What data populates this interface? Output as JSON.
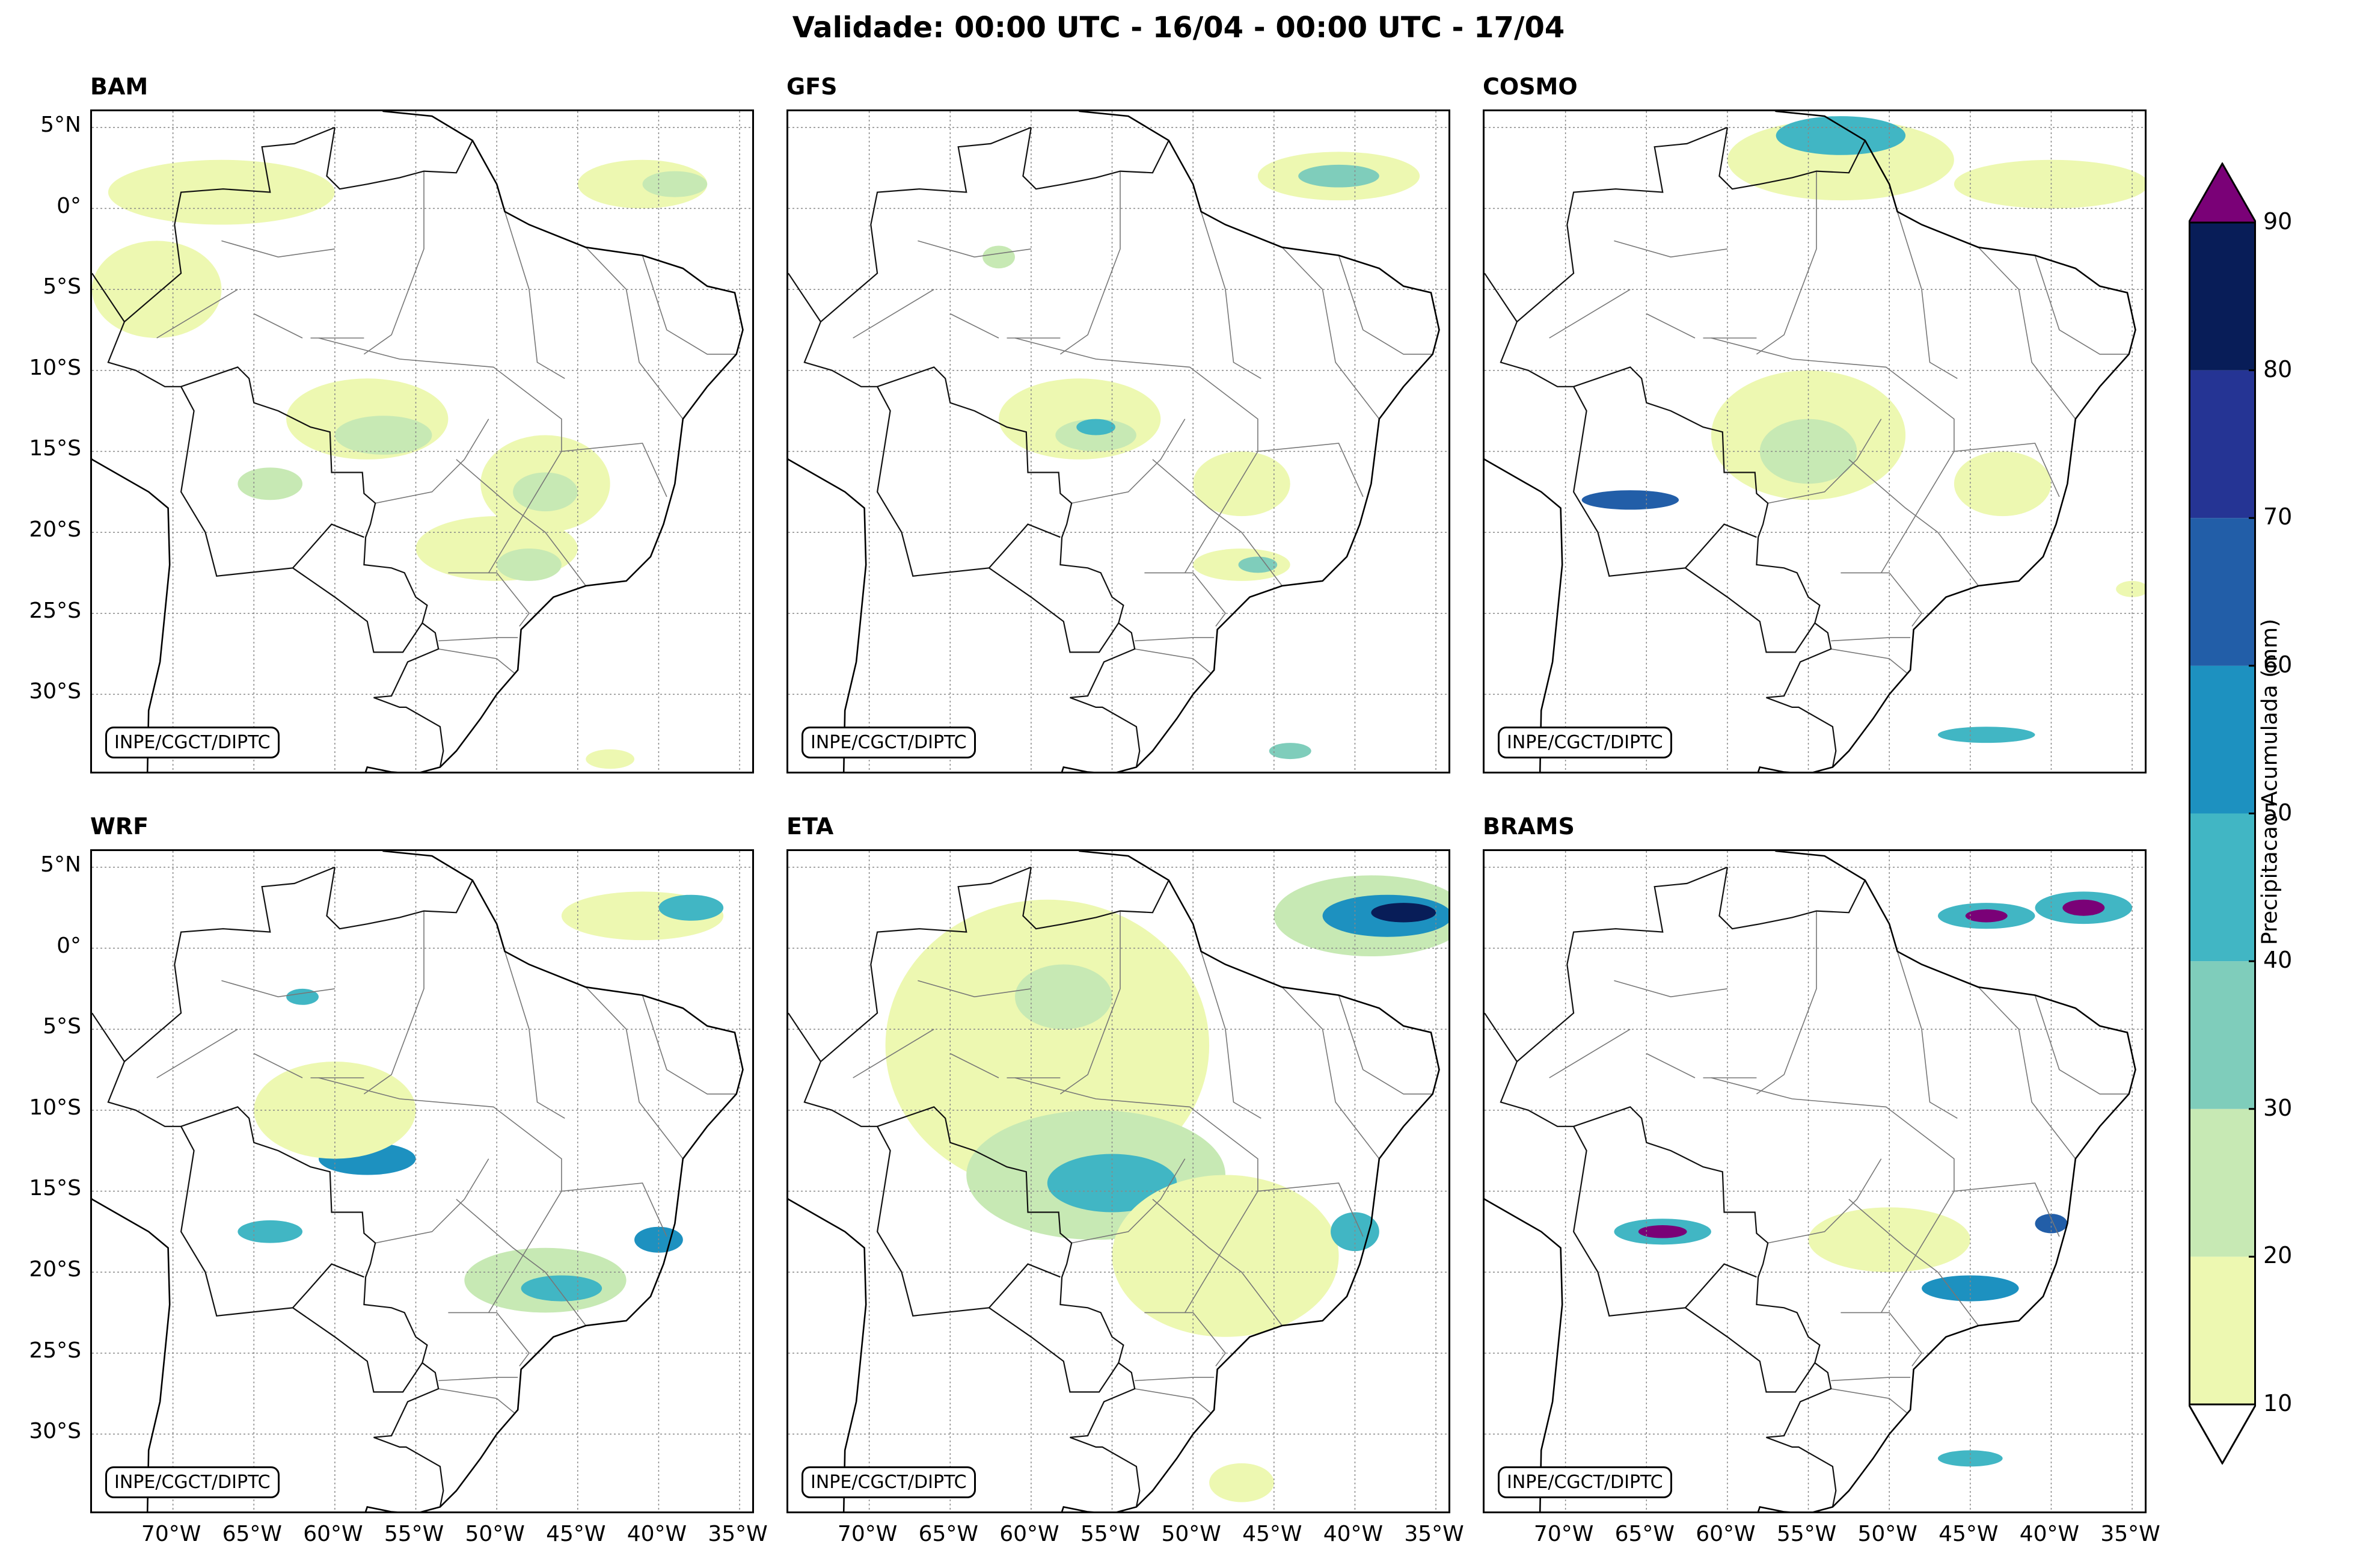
{
  "title": "Validade: 00:00 UTC - 16/04 - 00:00 UTC - 17/04",
  "credit": "INPE/CGCT/DIPTC",
  "latitude_labels": [
    "5°N",
    "0°",
    "5°S",
    "10°S",
    "15°S",
    "20°S",
    "25°S",
    "30°S"
  ],
  "latitude_values": [
    5,
    0,
    -5,
    -10,
    -15,
    -20,
    -25,
    -30
  ],
  "longitude_labels": [
    "70°W",
    "65°W",
    "60°W",
    "55°W",
    "50°W",
    "45°W",
    "40°W",
    "35°W"
  ],
  "longitude_values": [
    -70,
    -65,
    -60,
    -55,
    -50,
    -45,
    -40,
    -35
  ],
  "map_extent": {
    "lon_min": -75,
    "lon_max": -34,
    "lat_min": -35,
    "lat_max": 6
  },
  "panels": [
    {
      "id": "bam",
      "title": "BAM",
      "show_lat": true,
      "show_lon": false
    },
    {
      "id": "gfs",
      "title": "GFS",
      "show_lat": false,
      "show_lon": false
    },
    {
      "id": "cosmo",
      "title": "COSMO",
      "show_lat": false,
      "show_lon": false
    },
    {
      "id": "wrf",
      "title": "WRF",
      "show_lat": true,
      "show_lon": true
    },
    {
      "id": "eta",
      "title": "ETA",
      "show_lat": false,
      "show_lon": true
    },
    {
      "id": "brams",
      "title": "BRAMS",
      "show_lat": false,
      "show_lon": true
    }
  ],
  "colorbar": {
    "label": "Precipitacao Acumulada (mm)",
    "ticks": [
      10,
      20,
      30,
      40,
      50,
      60,
      70,
      80,
      90
    ],
    "bins": [
      {
        "from": 10,
        "to": 20,
        "color": "#edf8b1"
      },
      {
        "from": 20,
        "to": 30,
        "color": "#c7e9b4"
      },
      {
        "from": 30,
        "to": 40,
        "color": "#7fcdbb"
      },
      {
        "from": 40,
        "to": 50,
        "color": "#41b6c4"
      },
      {
        "from": 50,
        "to": 60,
        "color": "#1d91c0"
      },
      {
        "from": 60,
        "to": 70,
        "color": "#225ea8"
      },
      {
        "from": 70,
        "to": 80,
        "color": "#253494"
      },
      {
        "from": 80,
        "to": 90,
        "color": "#081d58"
      }
    ],
    "over_color": "#7a0177",
    "under_color": "#ffffff"
  },
  "precip_patches": {
    "bam": [
      {
        "lon": -41,
        "lat": 1.5,
        "rx": 4,
        "ry": 1.5,
        "mm": 15
      },
      {
        "lon": -39,
        "lat": 1.5,
        "rx": 2,
        "ry": 0.8,
        "mm": 25
      },
      {
        "lon": -67,
        "lat": 1,
        "rx": 7,
        "ry": 2,
        "mm": 12
      },
      {
        "lon": -71,
        "lat": -5,
        "rx": 4,
        "ry": 3,
        "mm": 12
      },
      {
        "lon": -58,
        "lat": -13,
        "rx": 5,
        "ry": 2.5,
        "mm": 15
      },
      {
        "lon": -57,
        "lat": -14,
        "rx": 3,
        "ry": 1.2,
        "mm": 25
      },
      {
        "lon": -64,
        "lat": -17,
        "rx": 2,
        "ry": 1,
        "mm": 25
      },
      {
        "lon": -47,
        "lat": -17,
        "rx": 4,
        "ry": 3,
        "mm": 15
      },
      {
        "lon": -47,
        "lat": -17.5,
        "rx": 2,
        "ry": 1.2,
        "mm": 25
      },
      {
        "lon": -50,
        "lat": -21,
        "rx": 5,
        "ry": 2,
        "mm": 12
      },
      {
        "lon": -48,
        "lat": -22,
        "rx": 2,
        "ry": 1,
        "mm": 25
      },
      {
        "lon": -43,
        "lat": -34,
        "rx": 1.5,
        "ry": 0.6,
        "mm": 12
      }
    ],
    "gfs": [
      {
        "lon": -41,
        "lat": 2,
        "rx": 5,
        "ry": 1.5,
        "mm": 15
      },
      {
        "lon": -41,
        "lat": 2,
        "rx": 2.5,
        "ry": 0.7,
        "mm": 32
      },
      {
        "lon": -57,
        "lat": -13,
        "rx": 5,
        "ry": 2.5,
        "mm": 12
      },
      {
        "lon": -56,
        "lat": -14,
        "rx": 2.5,
        "ry": 1,
        "mm": 25
      },
      {
        "lon": -56,
        "lat": -13.5,
        "rx": 1.2,
        "ry": 0.5,
        "mm": 45
      },
      {
        "lon": -47,
        "lat": -17,
        "rx": 3,
        "ry": 2,
        "mm": 12
      },
      {
        "lon": -47,
        "lat": -22,
        "rx": 3,
        "ry": 1,
        "mm": 15
      },
      {
        "lon": -46,
        "lat": -22,
        "rx": 1.2,
        "ry": 0.5,
        "mm": 30
      },
      {
        "lon": -62,
        "lat": -3,
        "rx": 1,
        "ry": 0.7,
        "mm": 25
      },
      {
        "lon": -44,
        "lat": -33.5,
        "rx": 1.3,
        "ry": 0.5,
        "mm": 30
      }
    ],
    "cosmo": [
      {
        "lon": -53,
        "lat": 3,
        "rx": 7,
        "ry": 2.5,
        "mm": 12
      },
      {
        "lon": -53,
        "lat": 4.5,
        "rx": 4,
        "ry": 1.2,
        "mm": 45
      },
      {
        "lon": -40,
        "lat": 1.5,
        "rx": 6,
        "ry": 1.5,
        "mm": 12
      },
      {
        "lon": -55,
        "lat": -14,
        "rx": 6,
        "ry": 4,
        "mm": 12
      },
      {
        "lon": -55,
        "lat": -15,
        "rx": 3,
        "ry": 2,
        "mm": 25
      },
      {
        "lon": -66,
        "lat": -18,
        "rx": 3,
        "ry": 0.6,
        "mm": 65
      },
      {
        "lon": -43,
        "lat": -17,
        "rx": 3,
        "ry": 2,
        "mm": 15
      },
      {
        "lon": -44,
        "lat": -32.5,
        "rx": 3,
        "ry": 0.5,
        "mm": 40
      },
      {
        "lon": -35,
        "lat": -23.5,
        "rx": 1,
        "ry": 0.5,
        "mm": 15
      }
    ],
    "wrf": [
      {
        "lon": -41,
        "lat": 2,
        "rx": 5,
        "ry": 1.5,
        "mm": 15
      },
      {
        "lon": -38,
        "lat": 2.5,
        "rx": 2,
        "ry": 0.8,
        "mm": 40
      },
      {
        "lon": -58,
        "lat": -13,
        "rx": 3,
        "ry": 1,
        "mm": 55
      },
      {
        "lon": -64,
        "lat": -17.5,
        "rx": 2,
        "ry": 0.7,
        "mm": 45
      },
      {
        "lon": -47,
        "lat": -20.5,
        "rx": 5,
        "ry": 2,
        "mm": 25
      },
      {
        "lon": -46,
        "lat": -21,
        "rx": 2.5,
        "ry": 0.8,
        "mm": 45
      },
      {
        "lon": -40,
        "lat": -18,
        "rx": 1.5,
        "ry": 0.8,
        "mm": 55
      },
      {
        "lon": -62,
        "lat": -3,
        "rx": 1,
        "ry": 0.5,
        "mm": 45
      },
      {
        "lon": -60,
        "lat": -10,
        "rx": 5,
        "ry": 3,
        "mm": 12
      }
    ],
    "eta": [
      {
        "lon": -39,
        "lat": 2,
        "rx": 6,
        "ry": 2.5,
        "mm": 25
      },
      {
        "lon": -38,
        "lat": 2,
        "rx": 4,
        "ry": 1.3,
        "mm": 55
      },
      {
        "lon": -37,
        "lat": 2.2,
        "rx": 2,
        "ry": 0.6,
        "mm": 88
      },
      {
        "lon": -59,
        "lat": -6,
        "rx": 10,
        "ry": 9,
        "mm": 12
      },
      {
        "lon": -58,
        "lat": -3,
        "rx": 3,
        "ry": 2,
        "mm": 25
      },
      {
        "lon": -56,
        "lat": -14,
        "rx": 8,
        "ry": 4,
        "mm": 25
      },
      {
        "lon": -55,
        "lat": -14.5,
        "rx": 4,
        "ry": 1.8,
        "mm": 45
      },
      {
        "lon": -48,
        "lat": -19,
        "rx": 7,
        "ry": 5,
        "mm": 12
      },
      {
        "lon": -40,
        "lat": -17.5,
        "rx": 1.5,
        "ry": 1.2,
        "mm": 45
      },
      {
        "lon": -47,
        "lat": -33,
        "rx": 2,
        "ry": 1.2,
        "mm": 15
      }
    ],
    "brams": [
      {
        "lon": -64,
        "lat": -17.5,
        "rx": 3,
        "ry": 0.8,
        "mm": 45
      },
      {
        "lon": -64,
        "lat": -17.5,
        "rx": 1.5,
        "ry": 0.4,
        "mm": 95
      },
      {
        "lon": -44,
        "lat": 2,
        "rx": 3,
        "ry": 0.8,
        "mm": 45
      },
      {
        "lon": -44,
        "lat": 2,
        "rx": 1.3,
        "ry": 0.4,
        "mm": 95
      },
      {
        "lon": -38,
        "lat": 2.5,
        "rx": 3,
        "ry": 1,
        "mm": 45
      },
      {
        "lon": -38,
        "lat": 2.5,
        "rx": 1.3,
        "ry": 0.5,
        "mm": 95
      },
      {
        "lon": -45,
        "lat": -21,
        "rx": 3,
        "ry": 0.8,
        "mm": 55
      },
      {
        "lon": -40,
        "lat": -17,
        "rx": 1,
        "ry": 0.6,
        "mm": 65
      },
      {
        "lon": -45,
        "lat": -31.5,
        "rx": 2,
        "ry": 0.5,
        "mm": 40
      },
      {
        "lon": -50,
        "lat": -18,
        "rx": 5,
        "ry": 2,
        "mm": 12
      }
    ]
  }
}
